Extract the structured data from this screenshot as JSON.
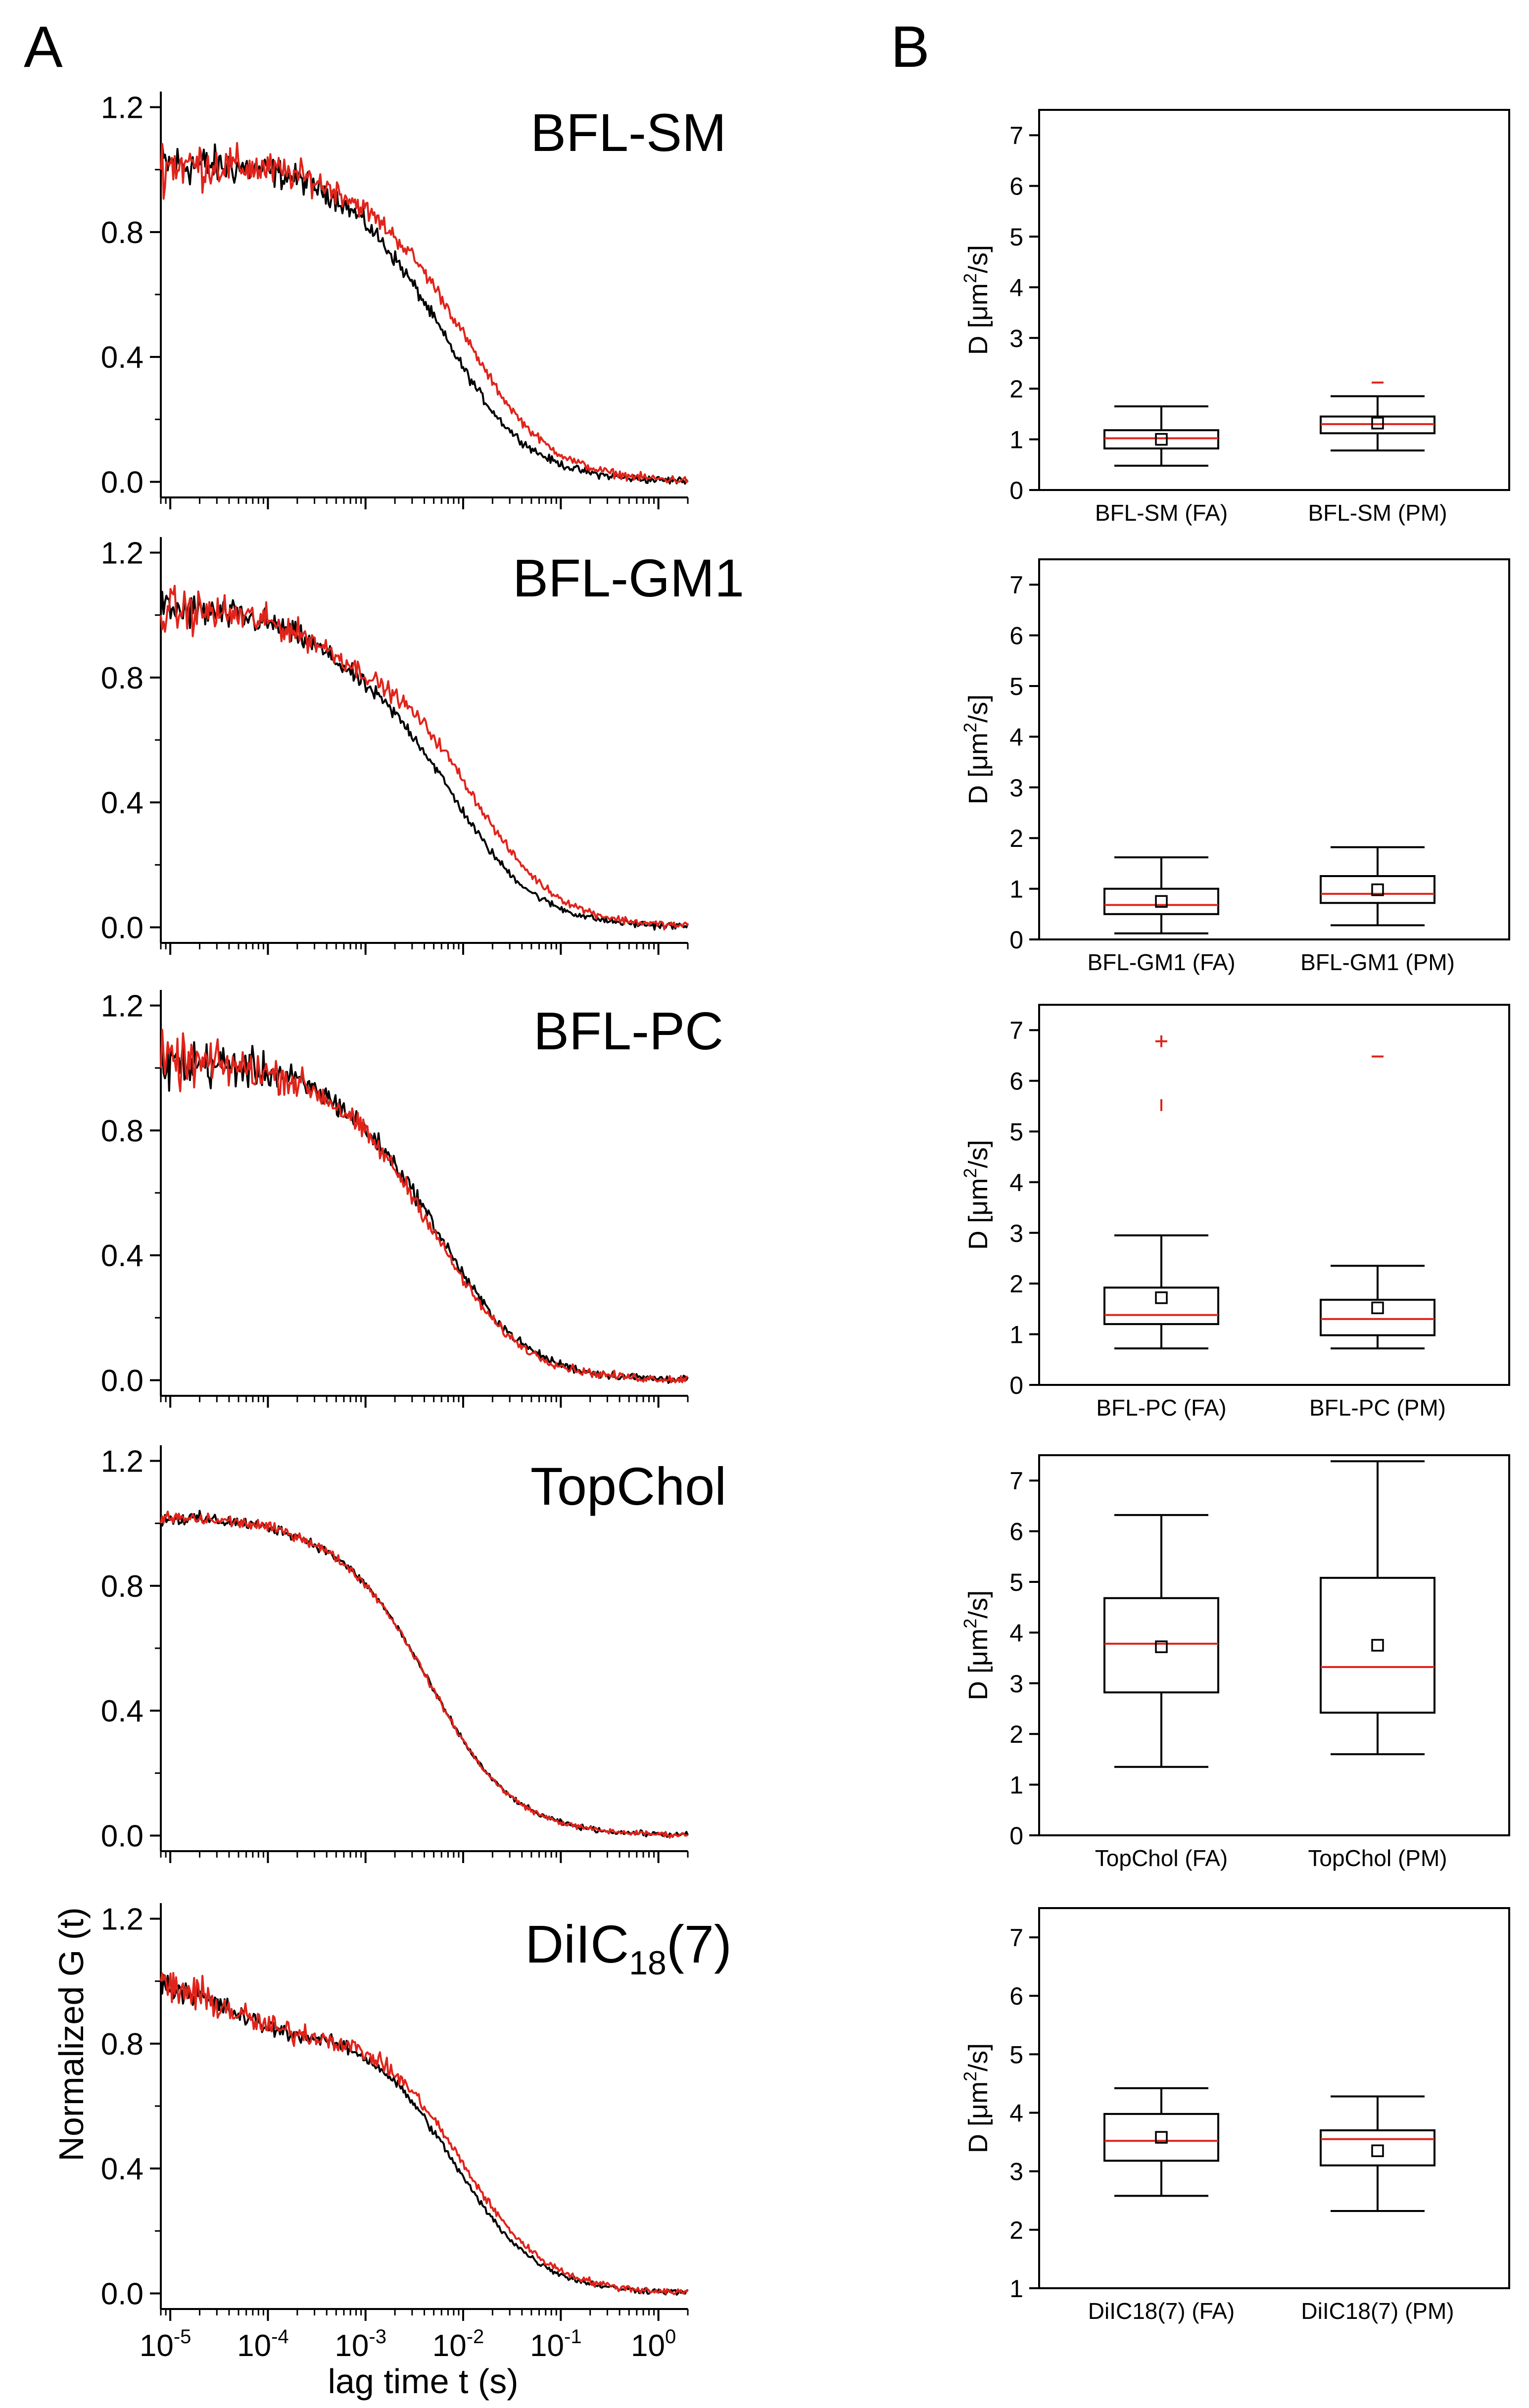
{
  "panel_labels": [
    "A",
    "B"
  ],
  "colors": {
    "series_black": "#000000",
    "series_red": "#e0241b",
    "median_line": "#e0241b",
    "outlier": "#e0241b",
    "axis": "#000000"
  },
  "panel_a": {
    "ylabel": "Normalized G (t)",
    "xlabel": "lag time t (s)",
    "x_tick_labels": [
      {
        "base": "10",
        "exp": "-5"
      },
      {
        "base": "10",
        "exp": "-4"
      },
      {
        "base": "10",
        "exp": "-3"
      },
      {
        "base": "10",
        "exp": "-2"
      },
      {
        "base": "10",
        "exp": "-1"
      },
      {
        "base": "10",
        "exp": "0"
      }
    ],
    "y_tick_labels": [
      "0.0",
      "0.4",
      "0.8",
      "1.2"
    ]
  },
  "panel_b": {
    "ylabel_prefix": "D [",
    "ylabel_mu": "μm",
    "ylabel_sup": "2",
    "ylabel_suffix": "/s]"
  },
  "chart_data": [
    {
      "type": "line",
      "panel": "A",
      "title": "BFL-SM",
      "title_main": "BFL-SM",
      "title_sub": "",
      "title_tail": "",
      "xscale": "log",
      "xlim": [
        8e-06,
        2
      ],
      "ylim": [
        -0.05,
        1.25
      ],
      "yticks": [
        0.0,
        0.4,
        0.8,
        1.2
      ],
      "series": [
        {
          "name": "black",
          "color": "#000000",
          "tau": 0.0065,
          "frac_triplet": 0.1,
          "tau_triplet": 0.0008,
          "noise": 0.06
        },
        {
          "name": "red",
          "color": "#e0241b",
          "tau": 0.0105,
          "frac_triplet": 0.1,
          "tau_triplet": 0.0008,
          "noise": 0.07
        }
      ]
    },
    {
      "type": "line",
      "panel": "A",
      "title": "BFL-GM1",
      "title_main": "BFL-GM1",
      "title_sub": "",
      "title_tail": "",
      "xscale": "log",
      "xlim": [
        8e-06,
        2
      ],
      "ylim": [
        -0.05,
        1.25
      ],
      "yticks": [
        0.0,
        0.4,
        0.8,
        1.2
      ],
      "series": [
        {
          "name": "black",
          "color": "#000000",
          "tau": 0.0075,
          "frac_triplet": 0.18,
          "tau_triplet": 0.0004,
          "noise": 0.05
        },
        {
          "name": "red",
          "color": "#e0241b",
          "tau": 0.012,
          "frac_triplet": 0.18,
          "tau_triplet": 0.0004,
          "noise": 0.06
        }
      ]
    },
    {
      "type": "line",
      "panel": "A",
      "title": "BFL-PC",
      "title_main": "BFL-PC",
      "title_sub": "",
      "title_tail": "",
      "xscale": "log",
      "xlim": [
        8e-06,
        2
      ],
      "ylim": [
        -0.05,
        1.25
      ],
      "yticks": [
        0.0,
        0.4,
        0.8,
        1.2
      ],
      "series": [
        {
          "name": "black",
          "color": "#000000",
          "tau": 0.0058,
          "frac_triplet": 0.1,
          "tau_triplet": 0.0005,
          "noise": 0.07
        },
        {
          "name": "red",
          "color": "#e0241b",
          "tau": 0.0053,
          "frac_triplet": 0.1,
          "tau_triplet": 0.0005,
          "noise": 0.07
        }
      ]
    },
    {
      "type": "line",
      "panel": "A",
      "title": "TopChol",
      "title_main": "TopChol",
      "title_sub": "",
      "title_tail": "",
      "xscale": "log",
      "xlim": [
        8e-06,
        2
      ],
      "ylim": [
        -0.05,
        1.25
      ],
      "yticks": [
        0.0,
        0.4,
        0.8,
        1.2
      ],
      "series": [
        {
          "name": "black",
          "color": "#000000",
          "tau": 0.0045,
          "frac_triplet": 0.04,
          "tau_triplet": 0.0003,
          "noise": 0.015
        },
        {
          "name": "red",
          "color": "#e0241b",
          "tau": 0.0045,
          "frac_triplet": 0.04,
          "tau_triplet": 0.0003,
          "noise": 0.015
        }
      ]
    },
    {
      "type": "line",
      "panel": "A",
      "title": "DiIC18(7)",
      "title_main": "DiIC",
      "title_sub": "18",
      "title_tail": "(7)",
      "xscale": "log",
      "xlim": [
        8e-06,
        2
      ],
      "ylim": [
        -0.05,
        1.25
      ],
      "yticks": [
        0.0,
        0.4,
        0.8,
        1.2
      ],
      "series": [
        {
          "name": "black",
          "color": "#000000",
          "tau": 0.0078,
          "frac_triplet": 0.2,
          "tau_triplet": 4e-05,
          "noise": 0.03
        },
        {
          "name": "red",
          "color": "#e0241b",
          "tau": 0.0095,
          "frac_triplet": 0.2,
          "tau_triplet": 4e-05,
          "noise": 0.05
        }
      ]
    },
    {
      "type": "box",
      "panel": "B",
      "ylabel": "D [μm2/s]",
      "ylim": [
        0,
        7.5
      ],
      "yticks": [
        0,
        1,
        2,
        3,
        4,
        5,
        6,
        7
      ],
      "groups": [
        {
          "label": "BFL-SM (FA)",
          "whisker_low": 0.48,
          "q1": 0.82,
          "median": 1.02,
          "q3": 1.18,
          "whisker_high": 1.65,
          "mean": 1.0,
          "outliers": []
        },
        {
          "label": "BFL-SM (PM)",
          "whisker_low": 0.78,
          "q1": 1.12,
          "median": 1.3,
          "q3": 1.45,
          "whisker_high": 1.85,
          "mean": 1.32,
          "outliers": [
            2.12
          ]
        }
      ]
    },
    {
      "type": "box",
      "panel": "B",
      "ylabel": "D [μm2/s]",
      "ylim": [
        0,
        7.5
      ],
      "yticks": [
        0,
        1,
        2,
        3,
        4,
        5,
        6,
        7
      ],
      "groups": [
        {
          "label": "BFL-GM1 (FA)",
          "whisker_low": 0.12,
          "q1": 0.5,
          "median": 0.68,
          "q3": 1.0,
          "whisker_high": 1.62,
          "mean": 0.75,
          "outliers": []
        },
        {
          "label": "BFL-GM1 (PM)",
          "whisker_low": 0.28,
          "q1": 0.72,
          "median": 0.9,
          "q3": 1.25,
          "whisker_high": 1.82,
          "mean": 0.98,
          "outliers": []
        }
      ]
    },
    {
      "type": "box",
      "panel": "B",
      "ylabel": "D [μm2/s]",
      "ylim": [
        0,
        7.5
      ],
      "yticks": [
        0,
        1,
        2,
        3,
        4,
        5,
        6,
        7
      ],
      "groups": [
        {
          "label": "BFL-PC (FA)",
          "whisker_low": 0.72,
          "q1": 1.2,
          "median": 1.38,
          "q3": 1.92,
          "whisker_high": 2.95,
          "mean": 1.72,
          "outliers": [
            5.52,
            6.78
          ]
        },
        {
          "label": "BFL-PC (PM)",
          "whisker_low": 0.72,
          "q1": 0.98,
          "median": 1.3,
          "q3": 1.68,
          "whisker_high": 2.35,
          "mean": 1.52,
          "outliers": [
            6.48
          ]
        }
      ]
    },
    {
      "type": "box",
      "panel": "B",
      "ylabel": "D [μm2/s]",
      "ylim": [
        0,
        7.5
      ],
      "yticks": [
        0,
        1,
        2,
        3,
        4,
        5,
        6,
        7
      ],
      "groups": [
        {
          "label": "TopChol (FA)",
          "whisker_low": 1.35,
          "q1": 2.82,
          "median": 3.78,
          "q3": 4.68,
          "whisker_high": 6.32,
          "mean": 3.72,
          "outliers": []
        },
        {
          "label": "TopChol (PM)",
          "whisker_low": 1.6,
          "q1": 2.42,
          "median": 3.32,
          "q3": 5.08,
          "whisker_high": 7.38,
          "mean": 3.75,
          "outliers": []
        }
      ]
    },
    {
      "type": "box",
      "panel": "B",
      "ylabel": "D [μm2/s]",
      "ylim": [
        1,
        7.5
      ],
      "yticks": [
        1,
        2,
        3,
        4,
        5,
        6,
        7
      ],
      "groups": [
        {
          "label": "DiIC18(7) (FA)",
          "whisker_low": 2.58,
          "q1": 3.18,
          "median": 3.52,
          "q3": 3.98,
          "whisker_high": 4.42,
          "mean": 3.58,
          "outliers": []
        },
        {
          "label": "DiIC18(7) (PM)",
          "whisker_low": 2.32,
          "q1": 3.1,
          "median": 3.55,
          "q3": 3.7,
          "whisker_high": 4.28,
          "mean": 3.35,
          "outliers": []
        }
      ]
    }
  ]
}
